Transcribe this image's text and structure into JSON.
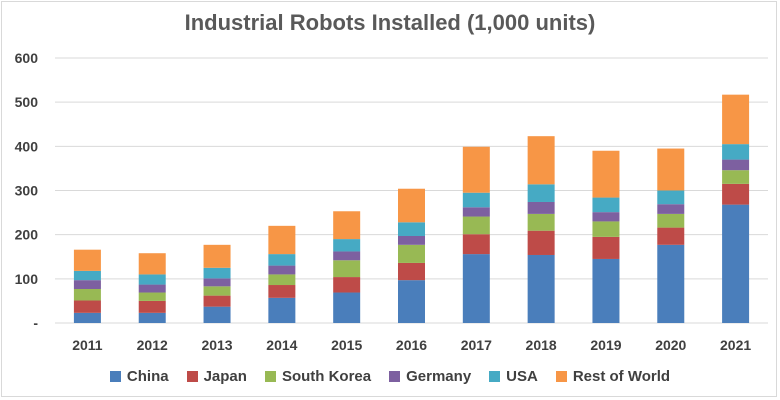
{
  "chart_data": {
    "type": "bar",
    "stacked": true,
    "title": "Industrial Robots Installed (1,000 units)",
    "xlabel": "",
    "ylabel": "",
    "ylim": [
      0,
      600
    ],
    "yticks": [
      "-",
      "100",
      "200",
      "300",
      "400",
      "500",
      "600"
    ],
    "grid": true,
    "legend_position": "bottom",
    "categories": [
      "2011",
      "2012",
      "2013",
      "2014",
      "2015",
      "2016",
      "2017",
      "2018",
      "2019",
      "2020",
      "2021"
    ],
    "series": [
      {
        "name": "China",
        "color": "#4a7ebb",
        "values": [
          23,
          23,
          37,
          57,
          69,
          97,
          156,
          154,
          145,
          177,
          268
        ]
      },
      {
        "name": "Japan",
        "color": "#be4b48",
        "values": [
          28,
          27,
          25,
          29,
          35,
          39,
          45,
          55,
          50,
          39,
          47
        ]
      },
      {
        "name": "South Korea",
        "color": "#98b954",
        "values": [
          26,
          19,
          21,
          24,
          38,
          41,
          40,
          38,
          35,
          31,
          31
        ]
      },
      {
        "name": "Germany",
        "color": "#7d60a0",
        "values": [
          20,
          18,
          18,
          20,
          20,
          20,
          21,
          27,
          21,
          22,
          24
        ]
      },
      {
        "name": "USA",
        "color": "#46aac4",
        "values": [
          21,
          23,
          24,
          26,
          28,
          31,
          33,
          40,
          33,
          31,
          35
        ]
      },
      {
        "name": "Rest of World",
        "color": "#f79646",
        "values": [
          48,
          48,
          52,
          64,
          63,
          76,
          104,
          109,
          106,
          95,
          112
        ]
      }
    ]
  }
}
